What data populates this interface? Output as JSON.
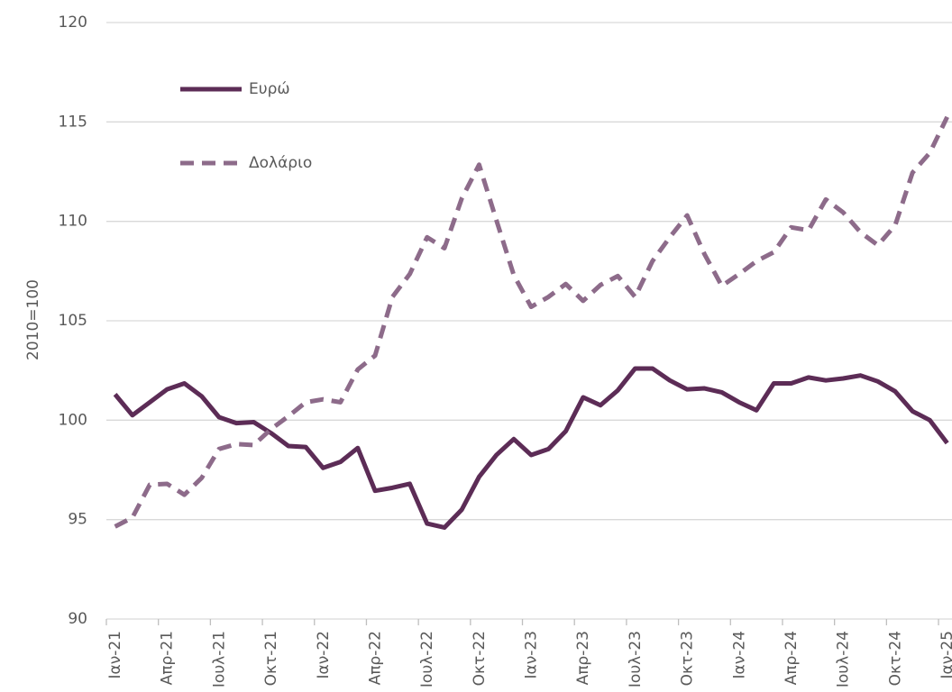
{
  "chart_data": {
    "type": "line",
    "y_label": "2010=100",
    "categories": [
      "Ιαν-21",
      null,
      null,
      "Απρ-21",
      null,
      null,
      "Ιουλ-21",
      null,
      null,
      "Οκτ-21",
      null,
      null,
      "Ιαν-22",
      null,
      null,
      "Απρ-22",
      null,
      null,
      "Ιουλ-22",
      null,
      null,
      "Οκτ-22",
      null,
      null,
      "Ιαν-23",
      null,
      null,
      "Απρ-23",
      null,
      null,
      "Ιουλ-23",
      null,
      null,
      "Οκτ-23",
      null,
      null,
      "Ιαν-24",
      null,
      null,
      "Απρ-24",
      null,
      null,
      "Ιουλ-24",
      null,
      null,
      "Οκτ-24",
      null,
      null,
      "Ιαν-25"
    ],
    "series": [
      {
        "name": "Ευρώ",
        "color": "#5c2c56",
        "dashed": false,
        "values": [
          101.3,
          100.25,
          100.9,
          101.55,
          101.85,
          101.2,
          100.15,
          99.85,
          99.9,
          99.35,
          98.7,
          98.65,
          97.6,
          97.9,
          98.6,
          96.45,
          96.6,
          96.8,
          94.8,
          94.6,
          95.5,
          97.15,
          98.25,
          99.05,
          98.25,
          98.55,
          99.45,
          101.15,
          100.75,
          101.5,
          102.6,
          102.6,
          102.0,
          101.55,
          101.6,
          101.4,
          100.9,
          100.5,
          101.85,
          101.85,
          102.15,
          102.0,
          102.1,
          102.25,
          101.95,
          101.45,
          100.45,
          100.0,
          98.85
        ]
      },
      {
        "name": "Δολάριο",
        "color": "#8d6b8a",
        "dashed": true,
        "values": [
          94.65,
          95.1,
          96.75,
          96.8,
          96.25,
          97.1,
          98.55,
          98.8,
          98.75,
          99.55,
          100.2,
          100.9,
          101.05,
          100.9,
          102.55,
          103.25,
          106.2,
          107.35,
          109.2,
          108.65,
          111.15,
          112.85,
          110.05,
          107.3,
          105.7,
          106.2,
          106.85,
          106.0,
          106.8,
          107.25,
          106.2,
          108.0,
          109.2,
          110.3,
          108.35,
          106.75,
          107.35,
          108.0,
          108.45,
          109.7,
          109.55,
          111.1,
          110.45,
          109.45,
          108.8,
          109.8,
          112.45,
          113.45,
          115.25
        ]
      }
    ],
    "ylim": [
      90,
      120
    ],
    "yticks": [
      90,
      95,
      100,
      105,
      110,
      115,
      120
    ],
    "grid": true
  }
}
